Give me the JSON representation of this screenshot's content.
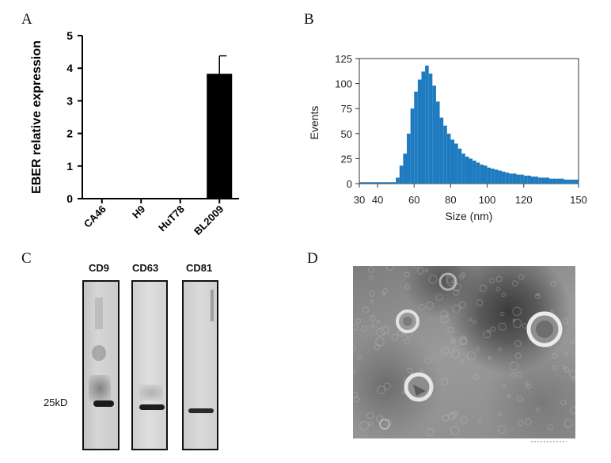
{
  "panels": {
    "a": "A",
    "b": "B",
    "c": "C",
    "d": "D"
  },
  "chart_data": [
    {
      "type": "bar",
      "categories": [
        "CA46",
        "H9",
        "HuT78",
        "BL2009"
      ],
      "values": [
        0,
        0,
        0,
        3.83
      ],
      "error": [
        0,
        0,
        0,
        0.55
      ],
      "ylabel": "EBER relative expression",
      "xlabel": "",
      "ylim": [
        0,
        5
      ],
      "yticks": [
        "0",
        "1",
        "2",
        "3",
        "4",
        "5"
      ],
      "bar_color": "#000000",
      "grid": false
    },
    {
      "type": "bar",
      "xlabel": "Size (nm)",
      "ylabel": "Events",
      "xlim": [
        30,
        150
      ],
      "ylim": [
        0,
        125
      ],
      "xticks": [
        "30",
        "40",
        "60",
        "80",
        "100",
        "120",
        "150"
      ],
      "yticks": [
        "0",
        "25",
        "50",
        "75",
        "100",
        "125"
      ],
      "bar_color": "#1f7bbf",
      "histogram_bins": {
        "x": [
          51,
          53,
          55,
          57,
          59,
          61,
          63,
          65,
          67,
          69,
          71,
          73,
          75,
          77,
          79,
          81,
          83,
          85,
          87,
          89,
          91,
          93,
          95,
          97,
          99,
          101,
          103,
          105,
          107,
          109,
          111,
          113,
          115,
          117,
          119,
          121,
          123,
          125,
          127,
          129,
          131,
          133,
          135,
          137,
          139,
          141,
          143,
          145,
          147,
          149
        ],
        "events": [
          6,
          18,
          30,
          50,
          75,
          92,
          104,
          112,
          118,
          110,
          98,
          82,
          66,
          58,
          50,
          44,
          40,
          35,
          30,
          27,
          25,
          23,
          21,
          19,
          18,
          16,
          15,
          14,
          13,
          12,
          11,
          10,
          10,
          9,
          9,
          8,
          8,
          7,
          7,
          6,
          6,
          6,
          5,
          5,
          5,
          5,
          4,
          4,
          4,
          4
        ]
      }
    }
  ],
  "western_blot": {
    "bands": [
      "CD9",
      "CD63",
      "CD81"
    ],
    "marker": "25kD"
  }
}
